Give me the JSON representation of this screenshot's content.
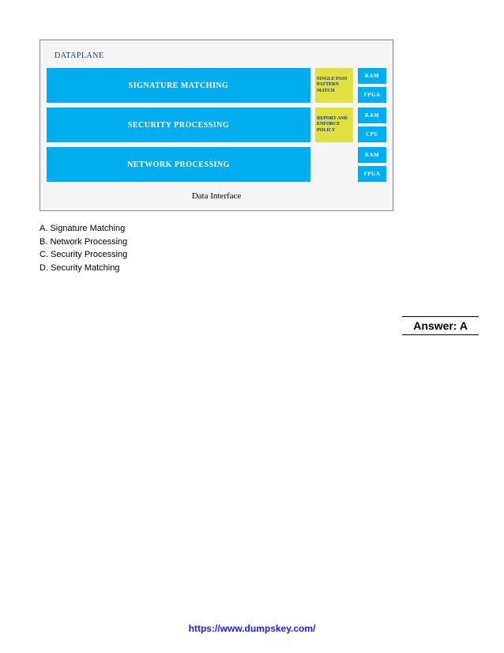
{
  "diagram": {
    "title": "DATAPLANE",
    "rows": [
      {
        "main": "SIGNATURE MATCHING",
        "sub": "SINGLE PASS PATTERN MATCH",
        "side": [
          "RAM",
          "FPGA"
        ]
      },
      {
        "main": "SECURITY PROCESSING",
        "sub": "REPORT AND ENFORCE POLICY",
        "side": [
          "RAM",
          "CPU"
        ]
      },
      {
        "main": "NETWORK PROCESSING",
        "sub": "",
        "side": [
          "RAM",
          "FPGA"
        ]
      }
    ],
    "interface_label": "Data Interface",
    "colors": {
      "block_bg": "#00aeef",
      "block_text": "#ffffff",
      "sub_bg": "#e0e040",
      "sub_text": "#1a3a6e",
      "container_bg": "#f5f5f5",
      "container_border": "#888888"
    }
  },
  "options": {
    "a": "A. Signature Matching",
    "b": "B. Network Processing",
    "c": "C. Security Processing",
    "d": "D. Security Matching"
  },
  "answer": "Answer: A",
  "footer_url": "https://www.dumpskey.com/"
}
